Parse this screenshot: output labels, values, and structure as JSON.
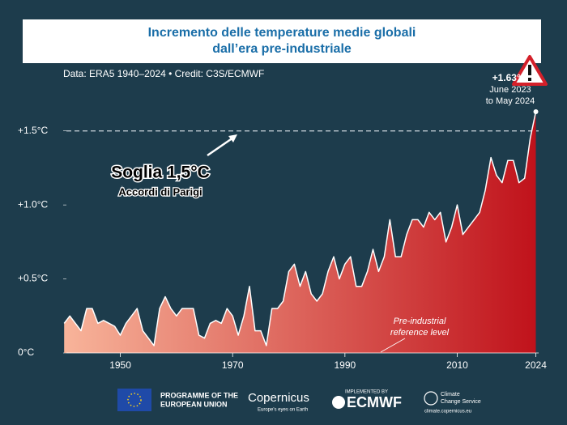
{
  "chart_data": {
    "type": "area",
    "title": [
      "Incremento delle temperature medie globali",
      "dall’era pre-industriale"
    ],
    "subtitle": "Data: ERA5 1940–2024 • Credit: C3S/ECMWF",
    "x": [
      1940,
      1941,
      1942,
      1943,
      1944,
      1945,
      1946,
      1947,
      1948,
      1949,
      1950,
      1951,
      1952,
      1953,
      1954,
      1955,
      1956,
      1957,
      1958,
      1959,
      1960,
      1961,
      1962,
      1963,
      1964,
      1965,
      1966,
      1967,
      1968,
      1969,
      1970,
      1971,
      1972,
      1973,
      1974,
      1975,
      1976,
      1977,
      1978,
      1979,
      1980,
      1981,
      1982,
      1983,
      1984,
      1985,
      1986,
      1987,
      1988,
      1989,
      1990,
      1991,
      1992,
      1993,
      1994,
      1995,
      1996,
      1997,
      1998,
      1999,
      2000,
      2001,
      2002,
      2003,
      2004,
      2005,
      2006,
      2007,
      2008,
      2009,
      2010,
      2011,
      2012,
      2013,
      2014,
      2015,
      2016,
      2017,
      2018,
      2019,
      2020,
      2021,
      2022,
      2023,
      2024
    ],
    "values": [
      0.2,
      0.25,
      0.2,
      0.15,
      0.3,
      0.3,
      0.2,
      0.22,
      0.2,
      0.18,
      0.12,
      0.2,
      0.25,
      0.3,
      0.15,
      0.1,
      0.05,
      0.3,
      0.38,
      0.3,
      0.25,
      0.3,
      0.3,
      0.3,
      0.12,
      0.1,
      0.2,
      0.22,
      0.2,
      0.3,
      0.25,
      0.12,
      0.25,
      0.45,
      0.15,
      0.15,
      0.05,
      0.3,
      0.3,
      0.35,
      0.55,
      0.6,
      0.45,
      0.55,
      0.4,
      0.35,
      0.4,
      0.55,
      0.65,
      0.5,
      0.6,
      0.65,
      0.45,
      0.45,
      0.55,
      0.7,
      0.55,
      0.65,
      0.9,
      0.65,
      0.65,
      0.8,
      0.9,
      0.9,
      0.85,
      0.95,
      0.9,
      0.95,
      0.75,
      0.85,
      1.0,
      0.8,
      0.85,
      0.9,
      0.95,
      1.1,
      1.32,
      1.2,
      1.15,
      1.3,
      1.3,
      1.15,
      1.18,
      1.45,
      1.63
    ],
    "value_labels": [
      null,
      null,
      null,
      null,
      null,
      null,
      null,
      null,
      null,
      null,
      null,
      null,
      null,
      null,
      null,
      null,
      null,
      null,
      null,
      null,
      null,
      null,
      null,
      null,
      null,
      null,
      null,
      null,
      null,
      null,
      null,
      null,
      null,
      null,
      null,
      null,
      null,
      null,
      null,
      null,
      null,
      null,
      null,
      null,
      null,
      null,
      null,
      null,
      null,
      null,
      null,
      null,
      null,
      null,
      null,
      null,
      null,
      null,
      null,
      null,
      null,
      null,
      null,
      null,
      null,
      null,
      null,
      null,
      null,
      null,
      null,
      null,
      null,
      null,
      null,
      null,
      null,
      null,
      null,
      null,
      null,
      null,
      null,
      null,
      "+1.63°C"
    ],
    "colors": [
      "#f8b49a",
      "#c0121b"
    ],
    "xlim": [
      1940.4,
      2024.5
    ],
    "ylim": [
      0,
      1.75
    ],
    "xticks": [
      1950,
      1970,
      1990,
      2010,
      2024
    ],
    "yticks": [
      {
        "value": 0,
        "label": "0°C"
      },
      {
        "value": 0.5,
        "label": "+0.5°C"
      },
      {
        "value": 1.0,
        "label": "+1.0°C"
      },
      {
        "value": 1.5,
        "label": "+1.5°C"
      }
    ],
    "threshold": 1.5,
    "annotations": {
      "last_period": [
        "June 2023",
        "to May 2024"
      ],
      "threshold_title": "Soglia 1,5°C",
      "threshold_subtitle": "Accordi di Parigi",
      "reference": [
        "Pre-industrial",
        "reference level"
      ]
    }
  },
  "footer": {
    "eu": [
      "PROGRAMME OF THE",
      "EUROPEAN UNION"
    ],
    "copernicus": "Copernicus",
    "copernicus_tagline": "Europe's eyes on Earth",
    "implemented": "IMPLEMENTED BY",
    "ecmwf": "ECMWF",
    "c3s": [
      "Climate",
      "Change Service"
    ],
    "url": "climate.copernicus.eu"
  }
}
